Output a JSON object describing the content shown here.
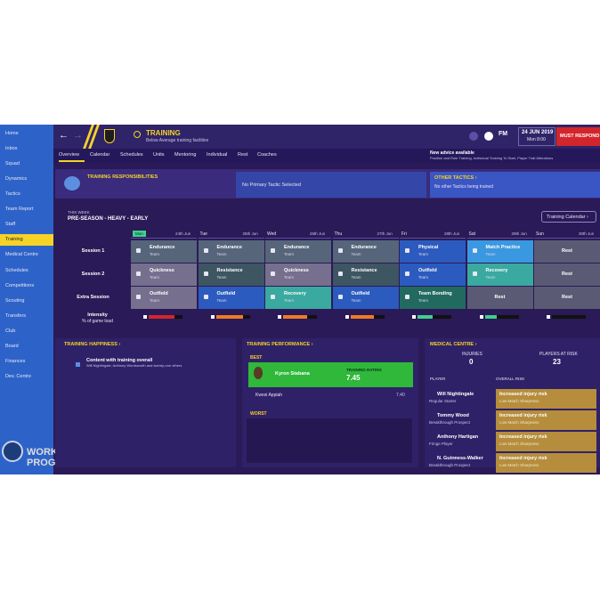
{
  "sidebar": {
    "items": [
      "Home",
      "Inbox",
      "Squad",
      "Dynamics",
      "Tactics",
      "Team Report",
      "Staff",
      "Training",
      "Medical Centre",
      "Schedules",
      "Competitions",
      "Scouting",
      "Transfers",
      "Club",
      "Board",
      "Finances",
      "Dev. Centre"
    ],
    "active": 7
  },
  "watermark": {
    "line1": "WORK IN",
    "line2": "PROGRESS"
  },
  "header": {
    "title": "TRAINING",
    "subtitle": "Below Average training facilities",
    "brand": "FM",
    "date": "24 JUN 2019",
    "time": "Mon 8:00",
    "action": "MUST RESPOND"
  },
  "tabs": {
    "items": [
      "Overview",
      "Calendar",
      "Schedules",
      "Units",
      "Mentoring",
      "Individual",
      "Rest",
      "Coaches"
    ],
    "active": 0
  },
  "advice": {
    "title": "New advice available",
    "text": "Position and Role Training, Individual Training To Start, Player Trait Alterations"
  },
  "responsibilities": {
    "title": "TRAINING RESPONSIBILITIES",
    "primary": "No Primary Tactic Selected",
    "other_title": "OTHER TACTICS ›",
    "other_text": "No other Tactics being trained"
  },
  "week": {
    "label": "THIS WEEK",
    "plan": "PRE-SEASON - HEAVY - EARLY",
    "calendar_button": "Training Calendar ›",
    "today": 0,
    "days": [
      {
        "name": "Mon",
        "date": "24th Jun"
      },
      {
        "name": "Tue",
        "date": "25th Jun"
      },
      {
        "name": "Wed",
        "date": "26th Jun"
      },
      {
        "name": "Thu",
        "date": "27th Jun"
      },
      {
        "name": "Fri",
        "date": "28th Jun"
      },
      {
        "name": "Sat",
        "date": "29th Jun"
      },
      {
        "name": "Sun",
        "date": "30th Jun"
      }
    ],
    "rows": [
      {
        "label": "Session 1",
        "cells": [
          {
            "title": "Endurance",
            "sub": "Team",
            "color": "#56657a"
          },
          {
            "title": "Endurance",
            "sub": "Team",
            "color": "#56657a"
          },
          {
            "title": "Endurance",
            "sub": "Team",
            "color": "#56657a"
          },
          {
            "title": "Endurance",
            "sub": "Team",
            "color": "#56657a"
          },
          {
            "title": "Physical",
            "sub": "Team",
            "color": "#2c5bbf"
          },
          {
            "title": "Match Practice",
            "sub": "Team",
            "color": "#3a98e0"
          },
          {
            "title": "Rest",
            "color": "#5b5a74"
          }
        ]
      },
      {
        "label": "Session 2",
        "cells": [
          {
            "title": "Quickness",
            "sub": "Team",
            "color": "#76708e"
          },
          {
            "title": "Resistance",
            "sub": "Team",
            "color": "#3e5562"
          },
          {
            "title": "Quickness",
            "sub": "Team",
            "color": "#76708e"
          },
          {
            "title": "Resistance",
            "sub": "Team",
            "color": "#3e5562"
          },
          {
            "title": "Outfield",
            "sub": "Team",
            "color": "#2c5bbf"
          },
          {
            "title": "Recovery",
            "sub": "Team",
            "color": "#3aa9a0"
          },
          {
            "title": "Rest",
            "color": "#5b5a74"
          }
        ]
      },
      {
        "label": "Extra Session",
        "cells": [
          {
            "title": "Outfield",
            "sub": "Team",
            "color": "#76708e"
          },
          {
            "title": "Outfield",
            "sub": "Team",
            "color": "#2c5bbf"
          },
          {
            "title": "Recovery",
            "sub": "Team",
            "color": "#3aa9a0"
          },
          {
            "title": "Outfield",
            "sub": "Team",
            "color": "#2c5bbf"
          },
          {
            "title": "Team Bonding",
            "sub": "Team",
            "color": "#226a60"
          },
          {
            "title": "Rest",
            "color": "#5b5a74"
          },
          {
            "title": "Rest",
            "color": "#5b5a74"
          }
        ]
      }
    ],
    "intensity": {
      "label": "Intensity",
      "sublabel": "% of game load",
      "values": [
        75,
        80,
        70,
        70,
        45,
        35,
        0
      ],
      "colors": [
        "#d2262c",
        "#f07a22",
        "#f07a22",
        "#f07a22",
        "#3fd08c",
        "#3fd08c",
        "#3fd08c"
      ]
    }
  },
  "happiness": {
    "title": "TRAINING HAPPINESS ›",
    "status": "Content with training overall",
    "detail": "Will Nightingale, Anthony Wordsworth and twenty-one others"
  },
  "performance": {
    "title": "TRAINING PERFORMANCE ›",
    "best_label": "BEST",
    "best": {
      "name": "Kyron Stabana",
      "rating_label": "TRAINING RATING",
      "rating": "7.45"
    },
    "runner_up": {
      "name": "Kwesi Appiah",
      "rating": "7.40"
    },
    "worst_label": "WORST"
  },
  "medical": {
    "title": "MEDICAL CENTRE ›",
    "injuries_label": "INJURIES",
    "injuries": 0,
    "risk_label": "PLAYERS AT RISK",
    "risk": 23,
    "player_col": "PLAYER",
    "risk_col": "OVERALL RISK",
    "players": [
      {
        "name": "Will Nightingale",
        "role": "Regular Starter",
        "risk": "Increased injury risk",
        "reason": "Low Match Sharpness"
      },
      {
        "name": "Tommy Wood",
        "role": "Breakthrough Prospect",
        "risk": "Increased injury risk",
        "reason": "Low Match Sharpness"
      },
      {
        "name": "Anthony Hartigan",
        "role": "Fringe Player",
        "risk": "Increased injury risk",
        "reason": "Low Match Sharpness"
      },
      {
        "name": "N. Guinness-Walker",
        "role": "Breakthrough Prospect",
        "risk": "Increased injury risk",
        "reason": "Low Match Sharpness"
      }
    ]
  }
}
